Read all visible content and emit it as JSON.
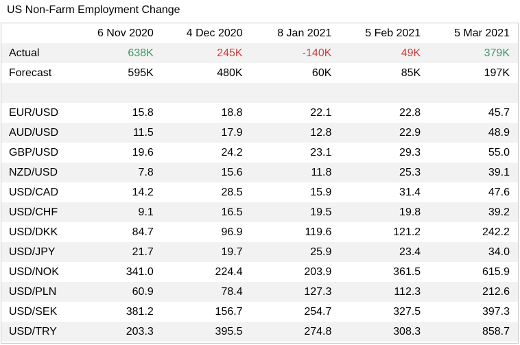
{
  "title": "US Non-Farm Employment Change",
  "dates": [
    "6 Nov 2020",
    "4 Dec 2020",
    "8 Jan 2021",
    "5 Feb 2021",
    "5 Mar 2021"
  ],
  "actual": {
    "label": "Actual",
    "values": [
      "638K",
      "245K",
      "-140K",
      "49K",
      "379K"
    ],
    "colors": [
      "#3a9a63",
      "#d03b3b",
      "#d03b3b",
      "#d03b3b",
      "#3a9a63"
    ]
  },
  "forecast": {
    "label": "Forecast",
    "values": [
      "595K",
      "480K",
      "60K",
      "85K",
      "197K"
    ]
  },
  "pairs": [
    {
      "name": "EUR/USD",
      "values": [
        "15.8",
        "18.8",
        "22.1",
        "22.8",
        "45.7"
      ]
    },
    {
      "name": "AUD/USD",
      "values": [
        "11.5",
        "17.9",
        "12.8",
        "22.9",
        "48.9"
      ]
    },
    {
      "name": "GBP/USD",
      "values": [
        "19.6",
        "24.2",
        "23.1",
        "29.3",
        "55.0"
      ]
    },
    {
      "name": "NZD/USD",
      "values": [
        "7.8",
        "15.6",
        "11.8",
        "25.3",
        "39.1"
      ]
    },
    {
      "name": "USD/CAD",
      "values": [
        "14.2",
        "28.5",
        "15.9",
        "31.4",
        "47.6"
      ]
    },
    {
      "name": "USD/CHF",
      "values": [
        "9.1",
        "16.5",
        "19.5",
        "19.8",
        "39.2"
      ]
    },
    {
      "name": "USD/DKK",
      "values": [
        "84.7",
        "96.9",
        "119.6",
        "121.2",
        "242.2"
      ]
    },
    {
      "name": "USD/JPY",
      "values": [
        "21.7",
        "19.7",
        "25.9",
        "23.4",
        "34.0"
      ]
    },
    {
      "name": "USD/NOK",
      "values": [
        "341.0",
        "224.4",
        "203.9",
        "361.5",
        "615.9"
      ]
    },
    {
      "name": "USD/PLN",
      "values": [
        "60.9",
        "78.4",
        "127.3",
        "112.3",
        "212.6"
      ]
    },
    {
      "name": "USD/SEK",
      "values": [
        "381.2",
        "156.7",
        "254.7",
        "327.5",
        "397.3"
      ]
    },
    {
      "name": "USD/TRY",
      "values": [
        "203.3",
        "395.5",
        "274.8",
        "308.3",
        "858.7"
      ]
    }
  ]
}
